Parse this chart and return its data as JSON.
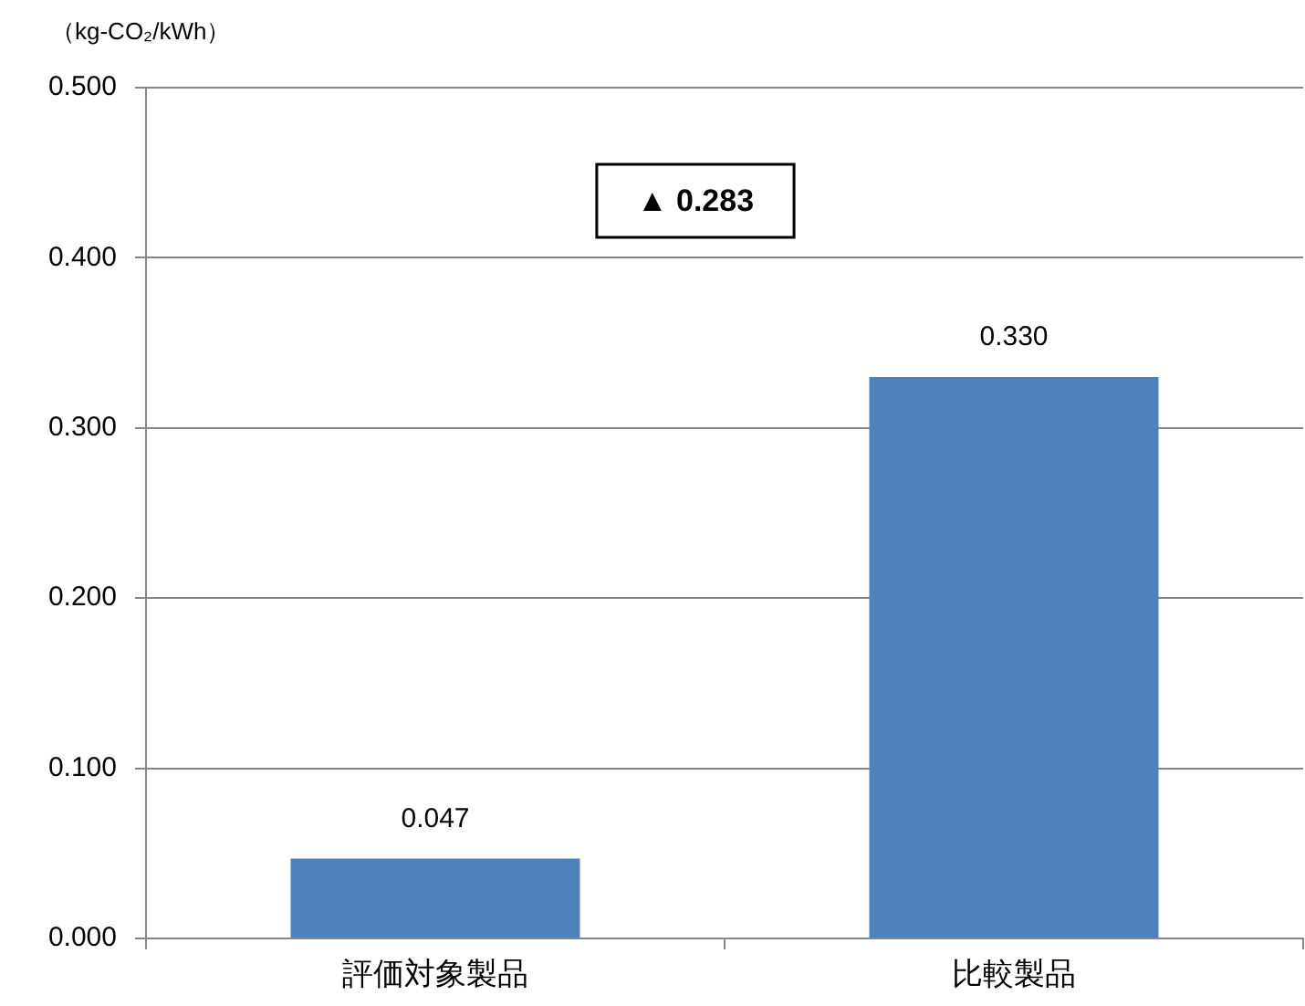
{
  "chart_data": {
    "type": "bar",
    "ylabel": "（kg-CO₂/kWh）",
    "categories": [
      "評価対象製品",
      "比較製品"
    ],
    "values": [
      0.047,
      0.33
    ],
    "color": "#4f81bd",
    "value_labels": [
      "0.047",
      "0.330"
    ],
    "ylim": [
      0,
      0.5
    ],
    "yticks": [
      {
        "value": 0,
        "label": "0.000"
      },
      {
        "value": 0.1,
        "label": "0.100"
      },
      {
        "value": 0.2,
        "label": "0.200"
      },
      {
        "value": 0.3,
        "label": "0.300"
      },
      {
        "value": 0.4,
        "label": "0.400"
      },
      {
        "value": 0.5,
        "label": "0.500"
      }
    ],
    "grid": "y",
    "legend": false,
    "annotations": [
      "▲ 0.283"
    ]
  }
}
